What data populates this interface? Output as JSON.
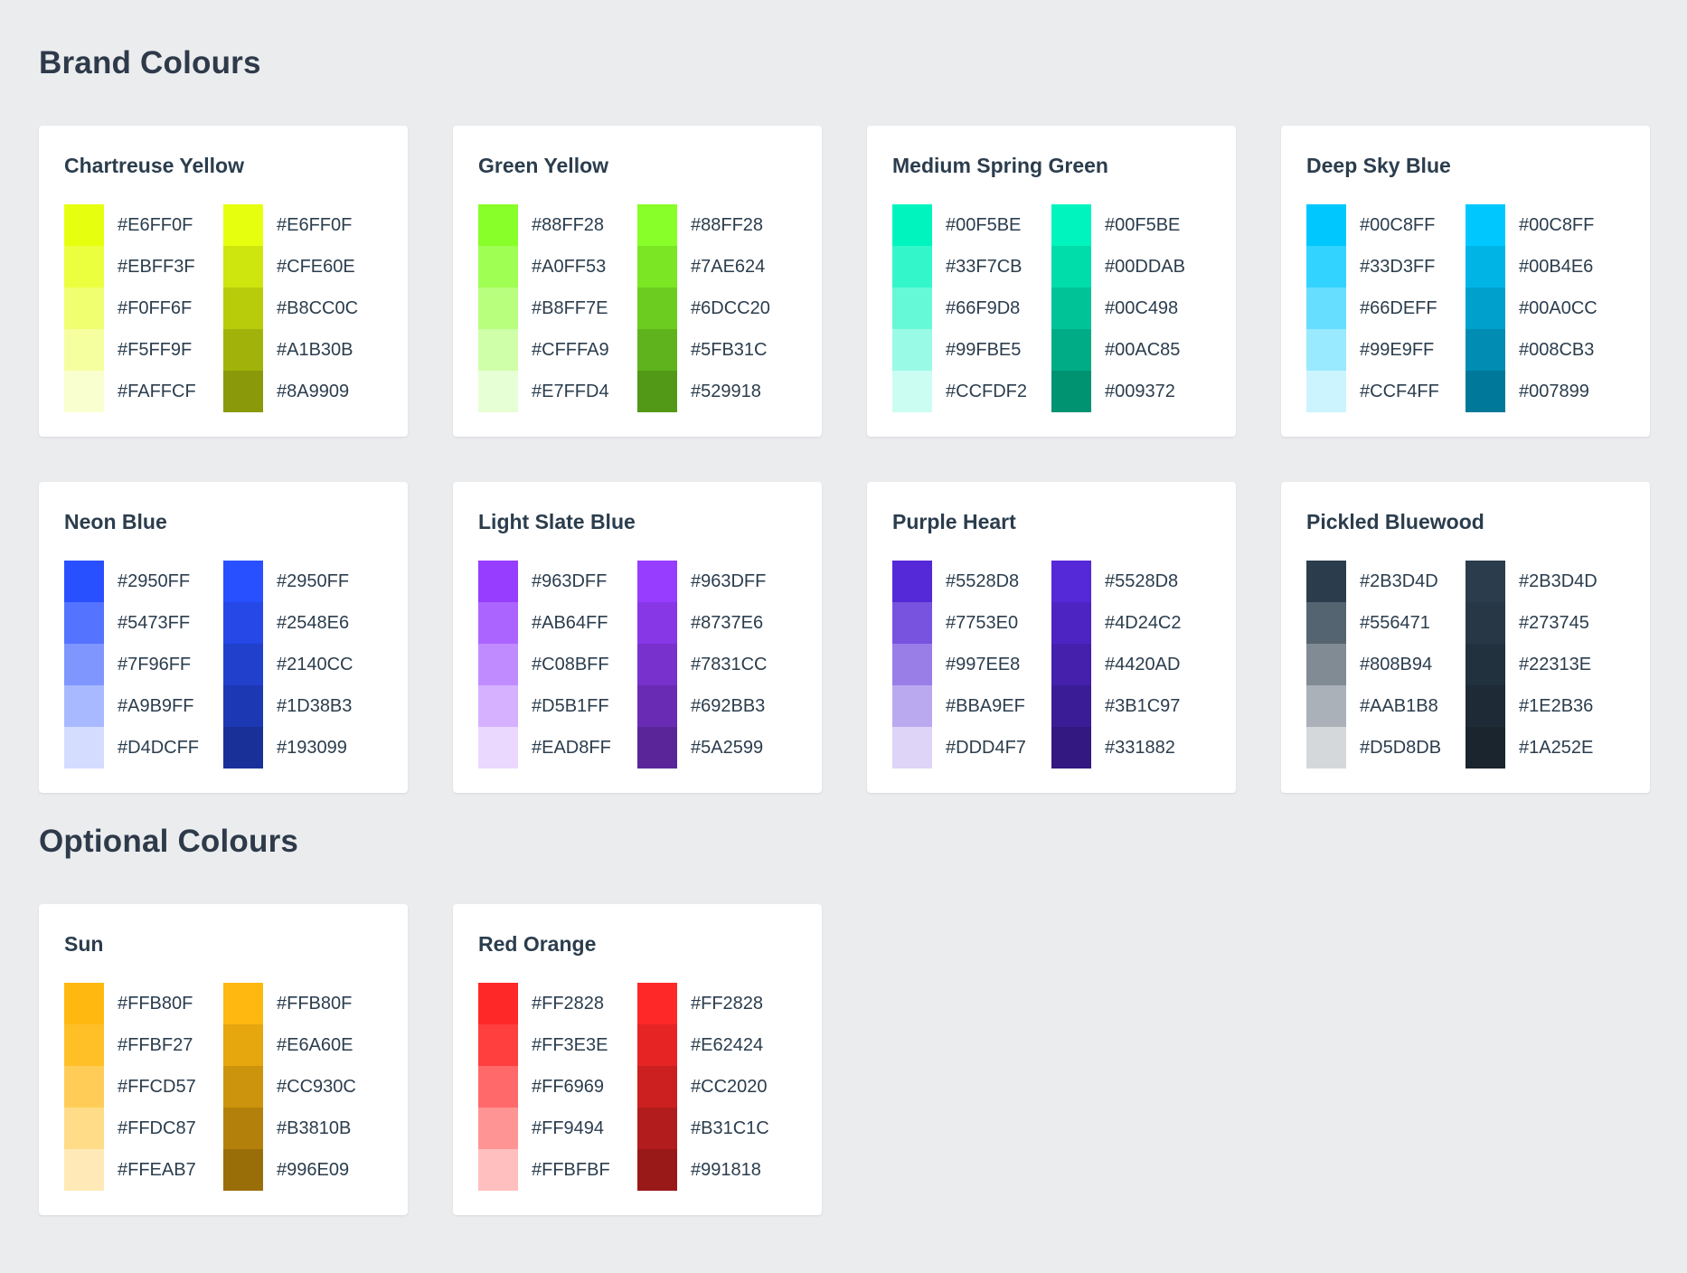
{
  "sections": [
    {
      "title": "Brand Colours",
      "palettes": [
        {
          "name": "Chartreuse Yellow",
          "columns": [
            [
              "#E6FF0F",
              "#EBFF3F",
              "#F0FF6F",
              "#F5FF9F",
              "#FAFFCF"
            ],
            [
              "#E6FF0F",
              "#CFE60E",
              "#B8CC0C",
              "#A1B30B",
              "#8A9909"
            ]
          ]
        },
        {
          "name": "Green Yellow",
          "columns": [
            [
              "#88FF28",
              "#A0FF53",
              "#B8FF7E",
              "#CFFFA9",
              "#E7FFD4"
            ],
            [
              "#88FF28",
              "#7AE624",
              "#6DCC20",
              "#5FB31C",
              "#529918"
            ]
          ]
        },
        {
          "name": "Medium Spring Green",
          "columns": [
            [
              "#00F5BE",
              "#33F7CB",
              "#66F9D8",
              "#99FBE5",
              "#CCFDF2"
            ],
            [
              "#00F5BE",
              "#00DDAB",
              "#00C498",
              "#00AC85",
              "#009372"
            ]
          ]
        },
        {
          "name": "Deep Sky Blue",
          "columns": [
            [
              "#00C8FF",
              "#33D3FF",
              "#66DEFF",
              "#99E9FF",
              "#CCF4FF"
            ],
            [
              "#00C8FF",
              "#00B4E6",
              "#00A0CC",
              "#008CB3",
              "#007899"
            ]
          ]
        },
        {
          "name": "Neon Blue",
          "columns": [
            [
              "#2950FF",
              "#5473FF",
              "#7F96FF",
              "#A9B9FF",
              "#D4DCFF"
            ],
            [
              "#2950FF",
              "#2548E6",
              "#2140CC",
              "#1D38B3",
              "#193099"
            ]
          ]
        },
        {
          "name": "Light Slate Blue",
          "columns": [
            [
              "#963DFF",
              "#AB64FF",
              "#C08BFF",
              "#D5B1FF",
              "#EAD8FF"
            ],
            [
              "#963DFF",
              "#8737E6",
              "#7831CC",
              "#692BB3",
              "#5A2599"
            ]
          ]
        },
        {
          "name": "Purple Heart",
          "columns": [
            [
              "#5528D8",
              "#7753E0",
              "#997EE8",
              "#BBA9EF",
              "#DDD4F7"
            ],
            [
              "#5528D8",
              "#4D24C2",
              "#4420AD",
              "#3B1C97",
              "#331882"
            ]
          ]
        },
        {
          "name": "Pickled Bluewood",
          "columns": [
            [
              "#2B3D4D",
              "#556471",
              "#808B94",
              "#AAB1B8",
              "#D5D8DB"
            ],
            [
              "#2B3D4D",
              "#273745",
              "#22313E",
              "#1E2B36",
              "#1A252E"
            ]
          ]
        }
      ]
    },
    {
      "title": "Optional Colours",
      "palettes": [
        {
          "name": "Sun",
          "columns": [
            [
              "#FFB80F",
              "#FFBF27",
              "#FFCD57",
              "#FFDC87",
              "#FFEAB7"
            ],
            [
              "#FFB80F",
              "#E6A60E",
              "#CC930C",
              "#B3810B",
              "#996E09"
            ]
          ]
        },
        {
          "name": "Red Orange",
          "columns": [
            [
              "#FF2828",
              "#FF3E3E",
              "#FF6969",
              "#FF9494",
              "#FFBFBF"
            ],
            [
              "#FF2828",
              "#E62424",
              "#CC2020",
              "#B31C1C",
              "#991818"
            ]
          ]
        }
      ]
    }
  ]
}
